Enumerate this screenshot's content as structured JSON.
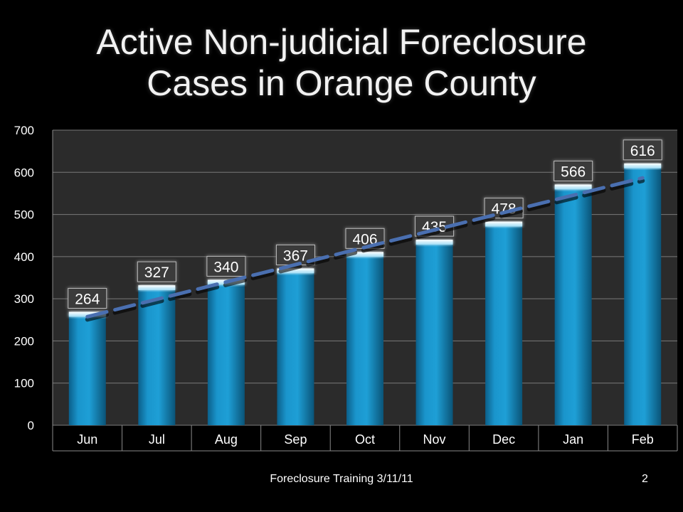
{
  "slide": {
    "title_line1": "Active Non-judicial Foreclosure",
    "title_line2": "Cases in Orange County",
    "footer": "Foreclosure Training 3/11/11",
    "page_number": "2"
  },
  "colors": {
    "background": "#000000",
    "plot_area": "#2b2b2b",
    "bar": "#1a8fc3",
    "trendline": "#4a6fb0",
    "text": "#ffffff"
  },
  "chart_data": {
    "type": "bar",
    "title": "Active Non-judicial Foreclosure Cases in Orange County",
    "categories": [
      "Jun",
      "Jul",
      "Aug",
      "Sep",
      "Oct",
      "Nov",
      "Dec",
      "Jan",
      "Feb"
    ],
    "series": [
      {
        "values": [
          264,
          327,
          340,
          367,
          406,
          435,
          478,
          566,
          616
        ]
      }
    ],
    "data_labels": [
      "264",
      "327",
      "340",
      "367",
      "406",
      "435",
      "478",
      "566",
      "616"
    ],
    "y_ticks": [
      "0",
      "100",
      "200",
      "300",
      "400",
      "500",
      "600",
      "700"
    ],
    "ylim": [
      0,
      700
    ],
    "grid": true,
    "legend": "none",
    "trendline": "linear, dashed",
    "xlabel": "",
    "ylabel": ""
  }
}
